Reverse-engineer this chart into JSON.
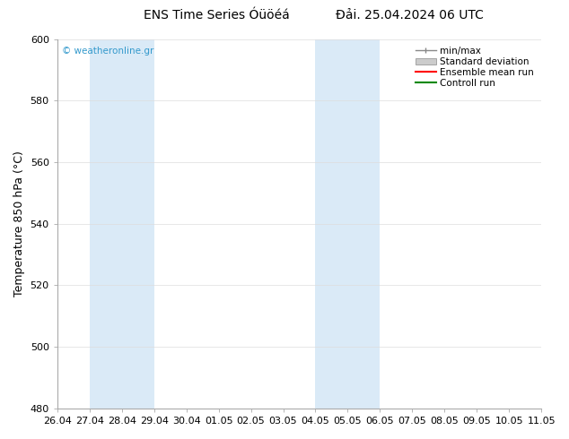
{
  "title_left": "ENS Time Series Óüöéá",
  "title_right": "Đải. 25.04.2024 06 UTC",
  "ylabel": "Temperature 850 hPa (°C)",
  "ylim": [
    480,
    600
  ],
  "yticks": [
    480,
    500,
    520,
    540,
    560,
    580,
    600
  ],
  "xlabels": [
    "26.04",
    "27.04",
    "28.04",
    "29.04",
    "30.04",
    "01.05",
    "02.05",
    "03.05",
    "04.05",
    "05.05",
    "06.05",
    "07.05",
    "08.05",
    "09.05",
    "10.05",
    "11.05"
  ],
  "shaded_bands": [
    {
      "start": 1,
      "end": 3
    },
    {
      "start": 8,
      "end": 10
    }
  ],
  "band_color": "#daeaf7",
  "background_color": "#ffffff",
  "plot_bg_color": "#ffffff",
  "watermark": "© weatheronline.gr",
  "watermark_color": "#3399cc",
  "legend_items": [
    {
      "label": "min/max",
      "color": "#888888",
      "style": "minmax"
    },
    {
      "label": "Standard deviation",
      "color": "#aaaaaa",
      "style": "stddev"
    },
    {
      "label": "Ensemble mean run",
      "color": "#ff0000",
      "style": "line"
    },
    {
      "label": "Controll run",
      "color": "#008800",
      "style": "line"
    }
  ],
  "title_fontsize": 10,
  "axis_fontsize": 9,
  "tick_fontsize": 8,
  "grid_color": "#dddddd",
  "spine_color": "#aaaaaa"
}
